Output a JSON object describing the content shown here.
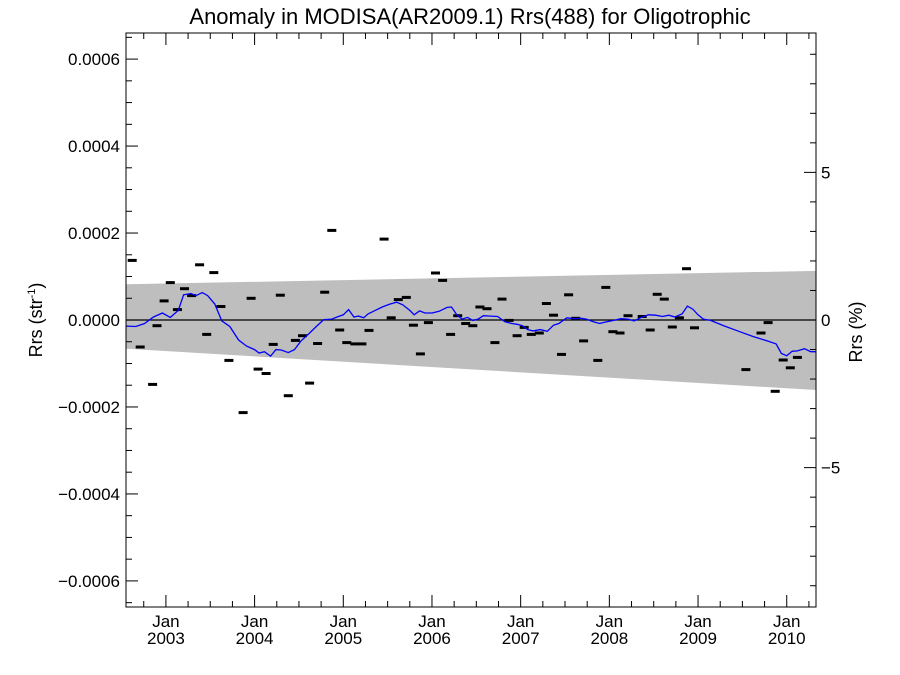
{
  "chart_data": {
    "type": "scatter",
    "title": "Anomaly in MODISA(AR2009.1) Rrs(488) for Oligotrophic",
    "ylabel_left": "Rrs (str",
    "ylabel_left_sup": "-1",
    "ylabel_left_close": ")",
    "ylabel_right": "Rrs (%)",
    "ylim": [
      -0.00066,
      0.00066
    ],
    "xlim": [
      2002.55,
      2010.33
    ],
    "right_axis_ticks": [
      {
        "value": 5,
        "label": "5"
      },
      {
        "value": 0,
        "label": "0"
      },
      {
        "value": -5,
        "label": "−5"
      }
    ],
    "right_axis_scale_per_unit": 6.79e-05,
    "y_ticks": [
      {
        "value": 0.0006,
        "label": "0.0006"
      },
      {
        "value": 0.0004,
        "label": "0.0004"
      },
      {
        "value": 0.0002,
        "label": "0.0002"
      },
      {
        "value": 0.0,
        "label": "0.0000"
      },
      {
        "value": -0.0002,
        "label": "−0.0002"
      },
      {
        "value": -0.0004,
        "label": "−0.0004"
      },
      {
        "value": -0.0006,
        "label": "−0.0006"
      }
    ],
    "x_ticks": [
      {
        "value": 2003.0,
        "month": "Jan",
        "year": "2003"
      },
      {
        "value": 2004.0,
        "month": "Jan",
        "year": "2004"
      },
      {
        "value": 2005.0,
        "month": "Jan",
        "year": "2005"
      },
      {
        "value": 2006.0,
        "month": "Jan",
        "year": "2006"
      },
      {
        "value": 2007.0,
        "month": "Jan",
        "year": "2007"
      },
      {
        "value": 2008.0,
        "month": "Jan",
        "year": "2008"
      },
      {
        "value": 2009.0,
        "month": "Jan",
        "year": "2009"
      },
      {
        "value": 2010.0,
        "month": "Jan",
        "year": "2010"
      }
    ],
    "uncertainty_band": {
      "color": "#bebebe",
      "upper": [
        [
          2002.55,
          8.2e-05
        ],
        [
          2010.33,
          0.000113
        ]
      ],
      "lower": [
        [
          2002.55,
          -6.6e-05
        ],
        [
          2010.33,
          -0.000161
        ]
      ]
    },
    "zero_line": 0,
    "series": [
      {
        "kind": "points",
        "color": "#000000",
        "points": [
          [
            2002.62,
            0.000137
          ],
          [
            2002.71,
            -6.2e-05
          ],
          [
            2002.85,
            -0.000148
          ],
          [
            2002.9,
            -1.3e-05
          ],
          [
            2002.98,
            4.4e-05
          ],
          [
            2003.05,
            8.6e-05
          ],
          [
            2003.13,
            2.4e-05
          ],
          [
            2003.21,
            7.2e-05
          ],
          [
            2003.29,
            5.6e-05
          ],
          [
            2003.38,
            0.000127
          ],
          [
            2003.46,
            -3.3e-05
          ],
          [
            2003.54,
            0.000109
          ],
          [
            2003.62,
            3.1e-05
          ],
          [
            2003.71,
            -9.3e-05
          ],
          [
            2003.87,
            -0.000213
          ],
          [
            2003.96,
            5e-05
          ],
          [
            2004.04,
            -0.000113
          ],
          [
            2004.13,
            -0.000123
          ],
          [
            2004.21,
            -5.6e-05
          ],
          [
            2004.29,
            5.7e-05
          ],
          [
            2004.38,
            -0.000174
          ],
          [
            2004.46,
            -4.7e-05
          ],
          [
            2004.54,
            -3.6e-05
          ],
          [
            2004.62,
            -0.000145
          ],
          [
            2004.71,
            -5.4e-05
          ],
          [
            2004.79,
            6.4e-05
          ],
          [
            2004.87,
            0.000206
          ],
          [
            2004.96,
            -2.3e-05
          ],
          [
            2005.04,
            -5.2e-05
          ],
          [
            2005.13,
            -5.5e-05
          ],
          [
            2005.21,
            -5.5e-05
          ],
          [
            2005.29,
            -2.4e-05
          ],
          [
            2005.46,
            0.000186
          ],
          [
            2005.54,
            5e-06
          ],
          [
            2005.62,
            4.7e-05
          ],
          [
            2005.71,
            5.2e-05
          ],
          [
            2005.79,
            -1.2e-05
          ],
          [
            2005.87,
            -7.8e-05
          ],
          [
            2005.96,
            -6e-06
          ],
          [
            2006.04,
            0.000108
          ],
          [
            2006.12,
            9.1e-05
          ],
          [
            2006.21,
            -3.3e-05
          ],
          [
            2006.29,
            1e-05
          ],
          [
            2006.38,
            -8e-06
          ],
          [
            2006.46,
            -1.3e-05
          ],
          [
            2006.54,
            3e-05
          ],
          [
            2006.62,
            2.6e-05
          ],
          [
            2006.71,
            -5.2e-05
          ],
          [
            2006.79,
            4.8e-05
          ],
          [
            2006.87,
            -1e-06
          ],
          [
            2006.96,
            -3.6e-05
          ],
          [
            2007.04,
            -1.7e-05
          ],
          [
            2007.12,
            -3.3e-05
          ],
          [
            2007.21,
            -3e-05
          ],
          [
            2007.29,
            3.8e-05
          ],
          [
            2007.37,
            1.1e-05
          ],
          [
            2007.46,
            -7.9e-05
          ],
          [
            2007.54,
            5.8e-05
          ],
          [
            2007.62,
            4e-06
          ],
          [
            2007.71,
            -4.8e-05
          ],
          [
            2007.87,
            -9.3e-05
          ],
          [
            2007.96,
            7.5e-05
          ],
          [
            2008.04,
            -2.7e-05
          ],
          [
            2008.12,
            -3e-05
          ],
          [
            2008.21,
            1e-05
          ],
          [
            2008.37,
            8e-06
          ],
          [
            2008.46,
            -2.3e-05
          ],
          [
            2008.54,
            5.9e-05
          ],
          [
            2008.62,
            4.8e-05
          ],
          [
            2008.71,
            -1.6e-05
          ],
          [
            2008.79,
            5e-06
          ],
          [
            2008.87,
            0.000118
          ],
          [
            2008.96,
            -1.8e-05
          ],
          [
            2009.54,
            -0.000114
          ],
          [
            2009.71,
            -3e-05
          ],
          [
            2009.79,
            -6e-06
          ],
          [
            2009.87,
            -0.000164
          ],
          [
            2009.96,
            -9.2e-05
          ],
          [
            2010.04,
            -0.00011
          ],
          [
            2010.12,
            -8.6e-05
          ]
        ]
      },
      {
        "kind": "line",
        "color": "#0000ff",
        "points": [
          [
            2002.55,
            -1.4e-05
          ],
          [
            2002.66,
            -1.5e-05
          ],
          [
            2002.76,
            -8e-06
          ],
          [
            2002.86,
            7e-06
          ],
          [
            2002.96,
            1.6e-05
          ],
          [
            2003.05,
            6e-06
          ],
          [
            2003.14,
            2.2e-05
          ],
          [
            2003.2,
            5.8e-05
          ],
          [
            2003.28,
            6.1e-05
          ],
          [
            2003.34,
            5.6e-05
          ],
          [
            2003.41,
            6.3e-05
          ],
          [
            2003.47,
            5.6e-05
          ],
          [
            2003.55,
            3.7e-05
          ],
          [
            2003.63,
            -2e-06
          ],
          [
            2003.72,
            -1.5e-05
          ],
          [
            2003.82,
            -4.6e-05
          ],
          [
            2003.91,
            -6e-05
          ],
          [
            2004.0,
            -6.8e-05
          ],
          [
            2004.05,
            -7.6e-05
          ],
          [
            2004.11,
            -7.3e-05
          ],
          [
            2004.18,
            -8.3e-05
          ],
          [
            2004.24,
            -6.8e-05
          ],
          [
            2004.3,
            -6.9e-05
          ],
          [
            2004.38,
            -7.5e-05
          ],
          [
            2004.45,
            -6.8e-05
          ],
          [
            2004.52,
            -4.9e-05
          ],
          [
            2004.62,
            -3e-05
          ],
          [
            2004.7,
            -1.4e-05
          ],
          [
            2004.78,
            1e-06
          ],
          [
            2004.87,
            2e-06
          ],
          [
            2004.93,
            7e-06
          ],
          [
            2005.0,
            1.2e-05
          ],
          [
            2005.06,
            2.4e-05
          ],
          [
            2005.12,
            7e-06
          ],
          [
            2005.17,
            9e-06
          ],
          [
            2005.23,
            5e-06
          ],
          [
            2005.28,
            1.4e-05
          ],
          [
            2005.36,
            2.2e-05
          ],
          [
            2005.44,
            3e-05
          ],
          [
            2005.52,
            3.6e-05
          ],
          [
            2005.6,
            4.1e-05
          ],
          [
            2005.67,
            3.5e-05
          ],
          [
            2005.75,
            2.2e-05
          ],
          [
            2005.8,
            1.2e-05
          ],
          [
            2005.86,
            2.1e-05
          ],
          [
            2005.92,
            1.6e-05
          ],
          [
            2006.0,
            1.6e-05
          ],
          [
            2006.08,
            2e-05
          ],
          [
            2006.17,
            2.9e-05
          ],
          [
            2006.22,
            3e-05
          ],
          [
            2006.28,
            1.2e-05
          ],
          [
            2006.34,
            2e-06
          ],
          [
            2006.4,
            6e-06
          ],
          [
            2006.46,
            -1e-06
          ],
          [
            2006.52,
            2e-06
          ],
          [
            2006.58,
            1e-05
          ],
          [
            2006.66,
            9e-06
          ],
          [
            2006.74,
            8e-06
          ],
          [
            2006.82,
            -4e-06
          ],
          [
            2006.9,
            -8e-06
          ],
          [
            2006.96,
            -1e-05
          ],
          [
            2007.02,
            -1.3e-05
          ],
          [
            2007.08,
            -2.2e-05
          ],
          [
            2007.14,
            -2.5e-05
          ],
          [
            2007.22,
            -2.2e-05
          ],
          [
            2007.3,
            -2.6e-05
          ],
          [
            2007.37,
            -1.2e-05
          ],
          [
            2007.43,
            -8e-06
          ],
          [
            2007.52,
            5e-06
          ],
          [
            2007.6,
            3e-06
          ],
          [
            2007.68,
            4e-06
          ],
          [
            2007.74,
            2e-06
          ],
          [
            2007.82,
            -4e-06
          ],
          [
            2007.89,
            -8e-06
          ],
          [
            2007.97,
            -4e-06
          ],
          [
            2008.05,
            -1e-06
          ],
          [
            2008.13,
            3e-06
          ],
          [
            2008.21,
            2e-06
          ],
          [
            2008.28,
            -2e-06
          ],
          [
            2008.36,
            6e-06
          ],
          [
            2008.44,
            1.2e-05
          ],
          [
            2008.52,
            1.1e-05
          ],
          [
            2008.6,
            8e-06
          ],
          [
            2008.67,
            1.1e-05
          ],
          [
            2008.74,
            7e-06
          ],
          [
            2008.82,
            1.4e-05
          ],
          [
            2008.88,
            3.2e-05
          ],
          [
            2008.94,
            2.5e-05
          ],
          [
            2009.0,
            1.2e-05
          ],
          [
            2009.06,
            2e-06
          ],
          [
            2009.14,
            -1e-06
          ],
          [
            2009.3,
            -1.4e-05
          ],
          [
            2009.46,
            -2.6e-05
          ],
          [
            2009.62,
            -3.8e-05
          ],
          [
            2009.78,
            -4.8e-05
          ],
          [
            2009.88,
            -5.5e-05
          ],
          [
            2009.94,
            -7.7e-05
          ],
          [
            2010.0,
            -8.2e-05
          ],
          [
            2010.06,
            -7.2e-05
          ],
          [
            2010.12,
            -7.1e-05
          ],
          [
            2010.2,
            -6.6e-05
          ],
          [
            2010.27,
            -7.3e-05
          ],
          [
            2010.33,
            -7.3e-05
          ]
        ]
      }
    ]
  }
}
